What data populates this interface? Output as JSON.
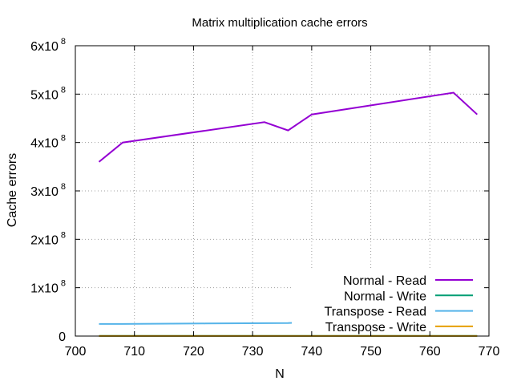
{
  "chart_data": {
    "type": "line",
    "title": "Matrix multiplication cache errors",
    "xlabel": "N",
    "ylabel": "Cache errors",
    "xlim": [
      700,
      770
    ],
    "ylim": [
      0,
      600000000
    ],
    "x_ticks": [
      700,
      710,
      720,
      730,
      740,
      750,
      760,
      770
    ],
    "y_ticks": [
      {
        "value": 0,
        "mantissa": "0",
        "exponent": ""
      },
      {
        "value": 100000000,
        "mantissa": "1x10",
        "exponent": "8"
      },
      {
        "value": 200000000,
        "mantissa": "2x10",
        "exponent": "8"
      },
      {
        "value": 300000000,
        "mantissa": "3x10",
        "exponent": "8"
      },
      {
        "value": 400000000,
        "mantissa": "4x10",
        "exponent": "8"
      },
      {
        "value": 500000000,
        "mantissa": "5x10",
        "exponent": "8"
      },
      {
        "value": 600000000,
        "mantissa": "6x10",
        "exponent": "8"
      }
    ],
    "grid": true,
    "legend_position": "bottom-right",
    "series": [
      {
        "name": "Normal - Read",
        "color": "#9400d3",
        "x": [
          704,
          708,
          732,
          736,
          740,
          764,
          768
        ],
        "y": [
          360000000,
          400000000,
          442000000,
          425000000,
          458000000,
          503000000,
          458000000
        ]
      },
      {
        "name": "Normal - Write",
        "color": "#009e73",
        "x": [
          704,
          708,
          732,
          736,
          740,
          764,
          768
        ],
        "y": [
          500000,
          500000,
          500000,
          500000,
          500000,
          500000,
          500000
        ]
      },
      {
        "name": "Transpose - Read",
        "color": "#56b4e9",
        "x": [
          704,
          708,
          722,
          736,
          738,
          768
        ],
        "y": [
          25000000,
          25000000,
          26000000,
          27000000,
          28000000,
          31000000
        ]
      },
      {
        "name": "Transpose - Write",
        "color": "#e69f00",
        "x": [
          704,
          708,
          732,
          736,
          740,
          764,
          768
        ],
        "y": [
          200000,
          200000,
          200000,
          200000,
          200000,
          200000,
          200000
        ]
      }
    ]
  }
}
